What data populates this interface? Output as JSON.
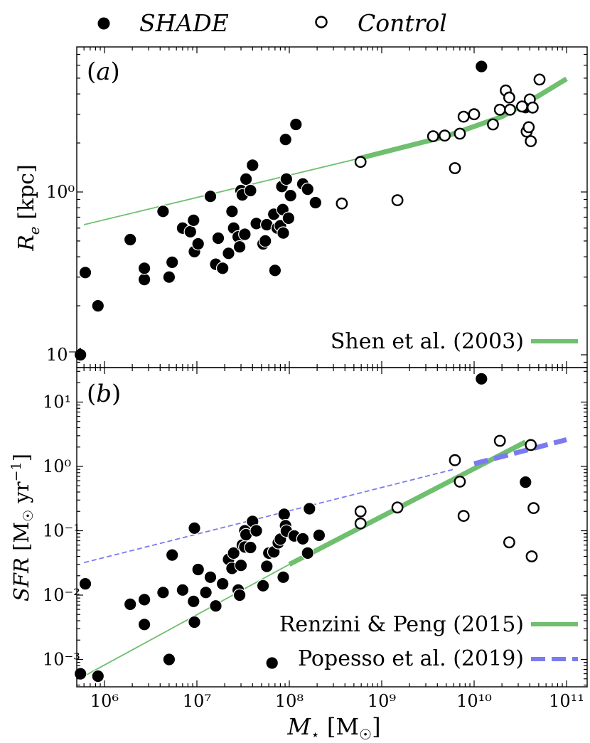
{
  "legend_top": {
    "filled_label": "SHADE",
    "open_label": "Control"
  },
  "chart_data": [
    {
      "panel": "(a)",
      "type": "scatter",
      "xscale": "log",
      "yscale": "log",
      "xlim": [
        300000,
        120000000000
      ],
      "ylim": [
        0.08,
        7.5
      ],
      "ylabel": "R_e [kpc]",
      "yticks": [
        "10⁻¹",
        "10⁰"
      ],
      "legend": {
        "position": "lower-right",
        "entries": [
          {
            "label": "Shen et al.  (2003)",
            "style": "green-thick"
          }
        ]
      },
      "series": [
        {
          "name": "SHADE",
          "marker": "filled",
          "points": [
            [
              550000,
              0.1
            ],
            [
              620000,
              0.32
            ],
            [
              850000,
              0.2
            ],
            [
              1900000,
              0.51
            ],
            [
              2700000,
              0.29
            ],
            [
              2700000,
              0.34
            ],
            [
              4300000,
              0.76
            ],
            [
              5000000,
              0.3
            ],
            [
              5400000,
              0.37
            ],
            [
              7000000,
              0.6
            ],
            [
              8500000,
              0.57
            ],
            [
              9200000,
              0.67
            ],
            [
              9400000,
              0.43
            ],
            [
              10300000,
              0.48
            ],
            [
              14000000,
              0.94
            ],
            [
              16000000,
              0.36
            ],
            [
              17000000,
              0.52
            ],
            [
              19000000,
              0.34
            ],
            [
              22000000,
              0.42
            ],
            [
              24000000,
              0.76
            ],
            [
              25000000,
              0.6
            ],
            [
              28000000,
              0.53
            ],
            [
              29000000,
              0.46
            ],
            [
              30000000,
              1.02
            ],
            [
              31000000,
              0.96
            ],
            [
              33000000,
              0.55
            ],
            [
              34000000,
              1.2
            ],
            [
              38000000,
              1.02
            ],
            [
              40000000,
              1.46
            ],
            [
              44000000,
              0.64
            ],
            [
              52000000,
              0.48
            ],
            [
              55000000,
              0.5
            ],
            [
              57000000,
              0.63
            ],
            [
              68000000,
              0.73
            ],
            [
              70000000,
              0.33
            ],
            [
              74000000,
              0.6
            ],
            [
              80000000,
              0.62
            ],
            [
              83000000,
              1.08
            ],
            [
              85000000,
              0.78
            ],
            [
              86000000,
              0.56
            ],
            [
              91000000,
              2.1
            ],
            [
              93000000,
              1.2
            ],
            [
              98000000,
              0.69
            ],
            [
              103000000,
              0.95
            ],
            [
              118000000,
              2.6
            ],
            [
              140000000,
              1.12
            ],
            [
              158000000,
              1.04
            ],
            [
              192000000,
              0.86
            ],
            [
              12000000000,
              5.9
            ],
            [
              36000000000,
              3.3
            ]
          ]
        },
        {
          "name": "Control",
          "marker": "open",
          "points": [
            [
              370000000,
              0.85
            ],
            [
              590000000,
              1.53
            ],
            [
              1480000000,
              0.89
            ],
            [
              3600000000,
              2.2
            ],
            [
              4800000000,
              2.22
            ],
            [
              6200000000,
              1.4
            ],
            [
              7000000000,
              2.28
            ],
            [
              7700000000,
              2.9
            ],
            [
              10000000000,
              3.0
            ],
            [
              16000000000,
              2.6
            ],
            [
              19000000000,
              3.2
            ],
            [
              22000000000,
              4.2
            ],
            [
              24000000000,
              3.8
            ],
            [
              24500000000,
              3.2
            ],
            [
              33000000000,
              3.35
            ],
            [
              37000000000,
              2.35
            ],
            [
              39000000000,
              2.5
            ],
            [
              40000000000,
              3.7
            ],
            [
              41000000000,
              2.05
            ],
            [
              43000000000,
              3.3
            ],
            [
              51000000000,
              4.9
            ]
          ]
        }
      ],
      "lines": [
        {
          "name": "Shen et al.  (2003)",
          "color": "#6fbf6f",
          "segments": [
            {
              "width": "thin",
              "points": [
                [
                  600000,
                  0.63
                ],
                [
                  600000000,
                  1.62
                ]
              ]
            },
            {
              "width": "thick",
              "points": [
                [
                  600000000,
                  1.62
                ],
                [
                  5000000000,
                  2.2
                ],
                [
                  20000000000,
                  2.9
                ],
                [
                  50000000000,
                  3.9
                ],
                [
                  100000000000,
                  4.95
                ]
              ]
            }
          ]
        }
      ]
    },
    {
      "panel": "(b)",
      "type": "scatter",
      "xscale": "log",
      "yscale": "log",
      "xlim": [
        300000,
        120000000000
      ],
      "ylim": [
        0.00035,
        35
      ],
      "xlabel": "M⋆ [M☉]",
      "ylabel": "SFR [M☉ yr⁻¹]",
      "xticks": [
        "10⁶",
        "10⁷",
        "10⁸",
        "10⁹",
        "10¹⁰",
        "10¹¹"
      ],
      "yticks": [
        "10⁻³",
        "10⁻²",
        "10⁻¹",
        "10⁰",
        "10¹"
      ],
      "legend": {
        "position": "lower-right",
        "entries": [
          {
            "label": "Renzini & Peng (2015)",
            "style": "green-thick"
          },
          {
            "label": "Popesso et al.  (2019)",
            "style": "blue-dashed"
          }
        ]
      },
      "series": [
        {
          "name": "SHADE",
          "marker": "filled",
          "points": [
            [
              550000,
              0.0006
            ],
            [
              620000,
              0.015
            ],
            [
              850000,
              0.00055
            ],
            [
              1900000,
              0.0072
            ],
            [
              2700000,
              0.0085
            ],
            [
              2700000,
              0.0035
            ],
            [
              4300000,
              0.011
            ],
            [
              5000000,
              0.001
            ],
            [
              5400000,
              0.042
            ],
            [
              7000000,
              0.012
            ],
            [
              9200000,
              0.008
            ],
            [
              9400000,
              0.11
            ],
            [
              9400000,
              0.0038
            ],
            [
              10300000,
              0.025
            ],
            [
              12500000,
              0.011
            ],
            [
              14000000,
              0.019
            ],
            [
              16000000,
              0.0068
            ],
            [
              19000000,
              0.015
            ],
            [
              22000000,
              0.036
            ],
            [
              24000000,
              0.026
            ],
            [
              25000000,
              0.045
            ],
            [
              28000000,
              0.012
            ],
            [
              29000000,
              0.01
            ],
            [
              30000000,
              0.029
            ],
            [
              31000000,
              0.06
            ],
            [
              33000000,
              0.1
            ],
            [
              33000000,
              0.056
            ],
            [
              34000000,
              0.087
            ],
            [
              38000000,
              0.055
            ],
            [
              40000000,
              0.14
            ],
            [
              44000000,
              0.1
            ],
            [
              52000000,
              0.014
            ],
            [
              57000000,
              0.028
            ],
            [
              60000000,
              0.045
            ],
            [
              65000000,
              0.00088
            ],
            [
              68000000,
              0.047
            ],
            [
              76000000,
              0.065
            ],
            [
              80000000,
              0.074
            ],
            [
              86000000,
              0.019
            ],
            [
              88000000,
              0.18
            ],
            [
              91000000,
              0.12
            ],
            [
              93000000,
              0.099
            ],
            [
              113000000,
              0.083
            ],
            [
              140000000,
              0.075
            ],
            [
              158000000,
              0.045
            ],
            [
              165000000,
              0.22
            ],
            [
              210000000,
              0.085
            ],
            [
              12000000000,
              23
            ],
            [
              36000000000,
              0.57
            ]
          ]
        },
        {
          "name": "Control",
          "marker": "open",
          "points": [
            [
              590000000,
              0.2
            ],
            [
              590000000,
              0.13
            ],
            [
              1480000000,
              0.23
            ],
            [
              6200000000,
              1.25
            ],
            [
              7000000000,
              0.58
            ],
            [
              7700000000,
              0.17
            ],
            [
              19000000000,
              2.5
            ],
            [
              24000000000,
              0.066
            ],
            [
              41000000000,
              2.15
            ],
            [
              42000000000,
              0.04
            ],
            [
              44000000000,
              0.225
            ]
          ]
        }
      ],
      "lines": [
        {
          "name": "Renzini & Peng (2015)",
          "color": "#6fbf6f",
          "segments": [
            {
              "width": "thin",
              "points": [
                [
                  600000,
                  0.00055
                ],
                [
                  100000000,
                  0.03
                ]
              ]
            },
            {
              "width": "thick",
              "points": [
                [
                  100000000,
                  0.03
                ],
                [
                  36000000000,
                  2.4
                ]
              ]
            }
          ]
        },
        {
          "name": "Popesso et al.  (2019)",
          "color": "#7b7bef",
          "segments": [
            {
              "width": "thin-dashed",
              "points": [
                [
                  600000,
                  0.032
                ],
                [
                  6000000000,
                  0.9
                ]
              ]
            },
            {
              "width": "thick-dashed",
              "points": [
                [
                  10000000000,
                  1.1
                ],
                [
                  100000000000,
                  2.6
                ]
              ]
            }
          ]
        }
      ]
    }
  ]
}
